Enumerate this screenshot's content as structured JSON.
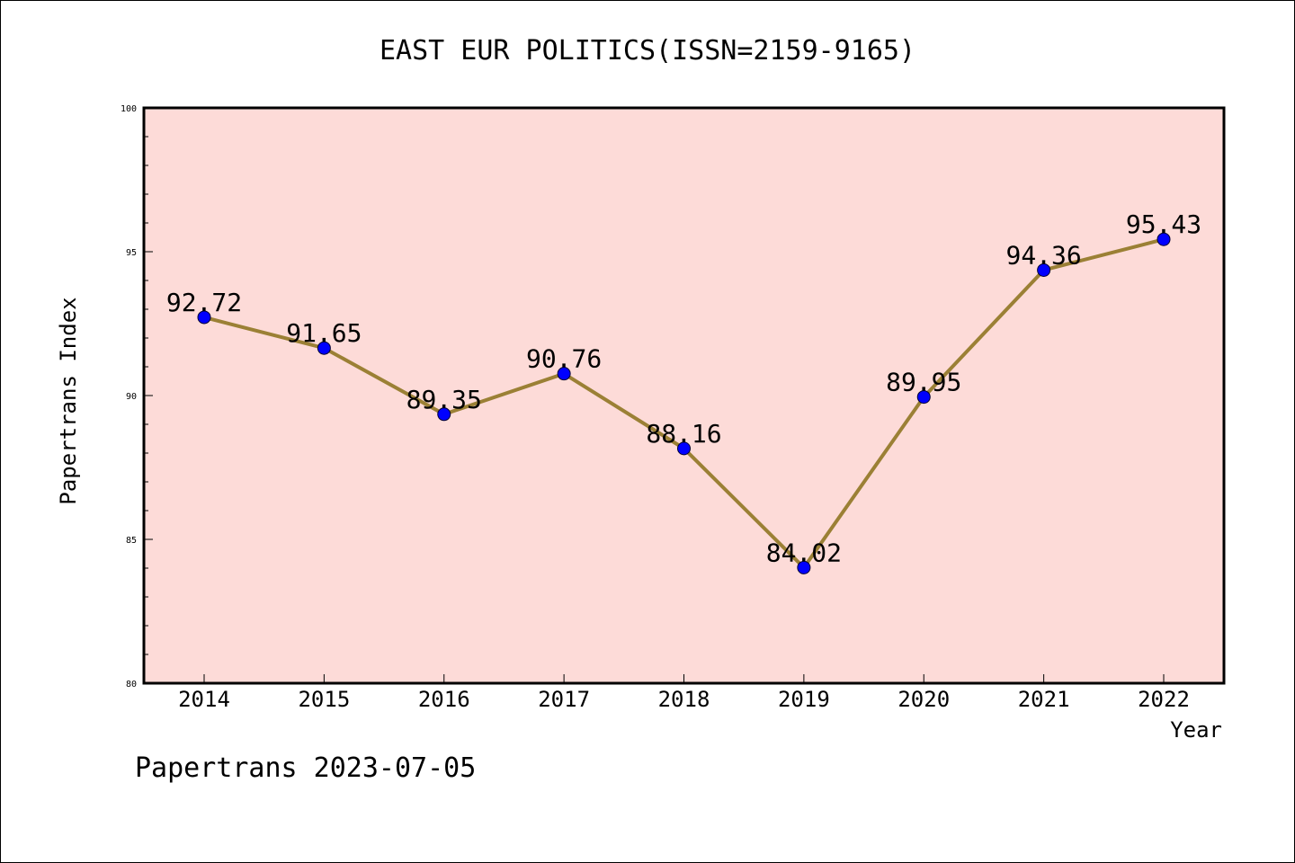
{
  "chart_data": {
    "type": "line",
    "title": "EAST EUR POLITICS(ISSN=2159-9165)",
    "xlabel": "Year",
    "ylabel": "Papertrans Index",
    "categories": [
      "2014",
      "2015",
      "2016",
      "2017",
      "2018",
      "2019",
      "2020",
      "2021",
      "2022"
    ],
    "series": [
      {
        "values": [
          92.72,
          91.65,
          89.35,
          90.76,
          88.16,
          84.02,
          89.95,
          94.36,
          95.43
        ],
        "labels": [
          "92.72",
          "91.65",
          "89.35",
          "90.76",
          "88.16",
          "84.02",
          "89.95",
          "94.36",
          "95.43"
        ]
      }
    ],
    "ylim": [
      80,
      100
    ],
    "yticks": [
      "80",
      "85",
      "90",
      "95",
      "100"
    ],
    "grid": false,
    "colors": {
      "plot_background": "#fddbd8",
      "line": "#9b8035",
      "marker": "#0000ff"
    }
  },
  "footer": "Papertrans 2023-07-05"
}
